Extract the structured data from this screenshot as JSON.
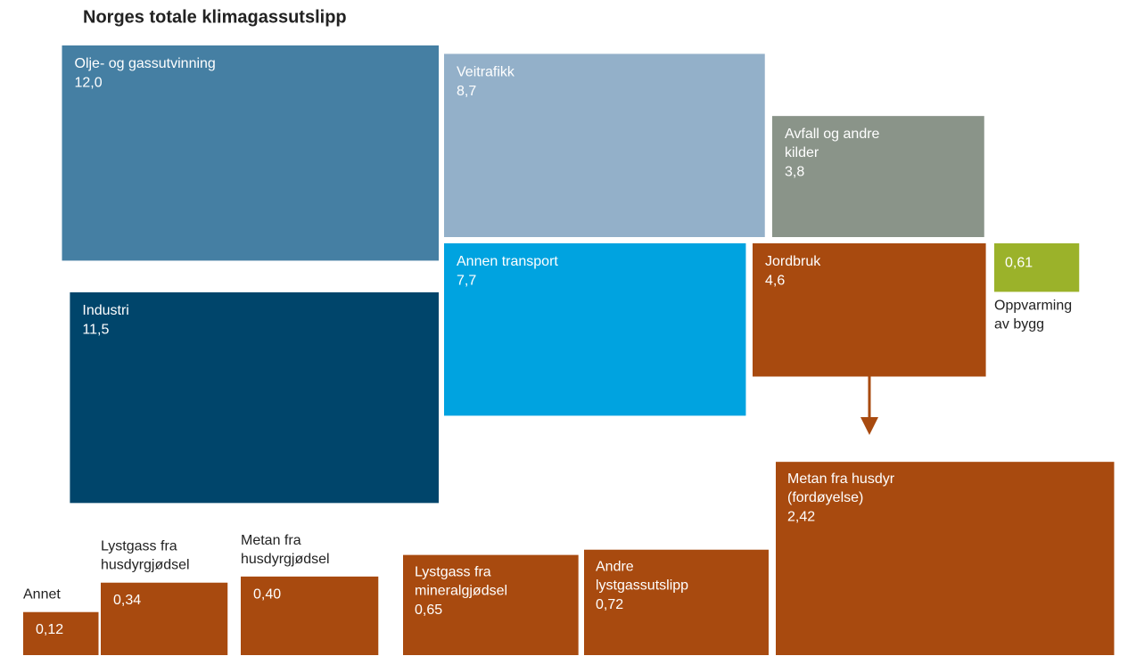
{
  "chart_data": {
    "type": "proportional-area",
    "title": "Norges totale klimagassutslipp",
    "categories": [
      "Olje- og gassutvinning",
      "Veitrafikk",
      "Avfall og andre kilder",
      "Industri",
      "Annen transport",
      "Jordbruk",
      "Oppvarming av bygg"
    ],
    "values": [
      12.0,
      8.7,
      3.8,
      11.5,
      7.7,
      4.6,
      0.61
    ],
    "value_labels": [
      "12,0",
      "8,7",
      "3,8",
      "11,5",
      "7,7",
      "4,6",
      "0,61"
    ],
    "colors": [
      "#457fa3",
      "#93b0c9",
      "#8a9489",
      "#00456b",
      "#00a3e0",
      "#a84a0f",
      "#9bb22a"
    ],
    "breakdown": {
      "categories": [
        "Annet",
        "Lystgass fra husdyrgjødsel",
        "Metan fra husdyrgjødsel",
        "Lystgass fra mineralgjødsel",
        "Andre lystgassutslipp",
        "Metan fra husdyr (fordøyelse)"
      ],
      "values": [
        0.12,
        0.34,
        0.4,
        0.65,
        0.72,
        2.42
      ],
      "value_labels": [
        "0,12",
        "0,34",
        "0,40",
        "0,65",
        "0,72",
        "2,42"
      ],
      "color": "#a84a0f"
    }
  }
}
